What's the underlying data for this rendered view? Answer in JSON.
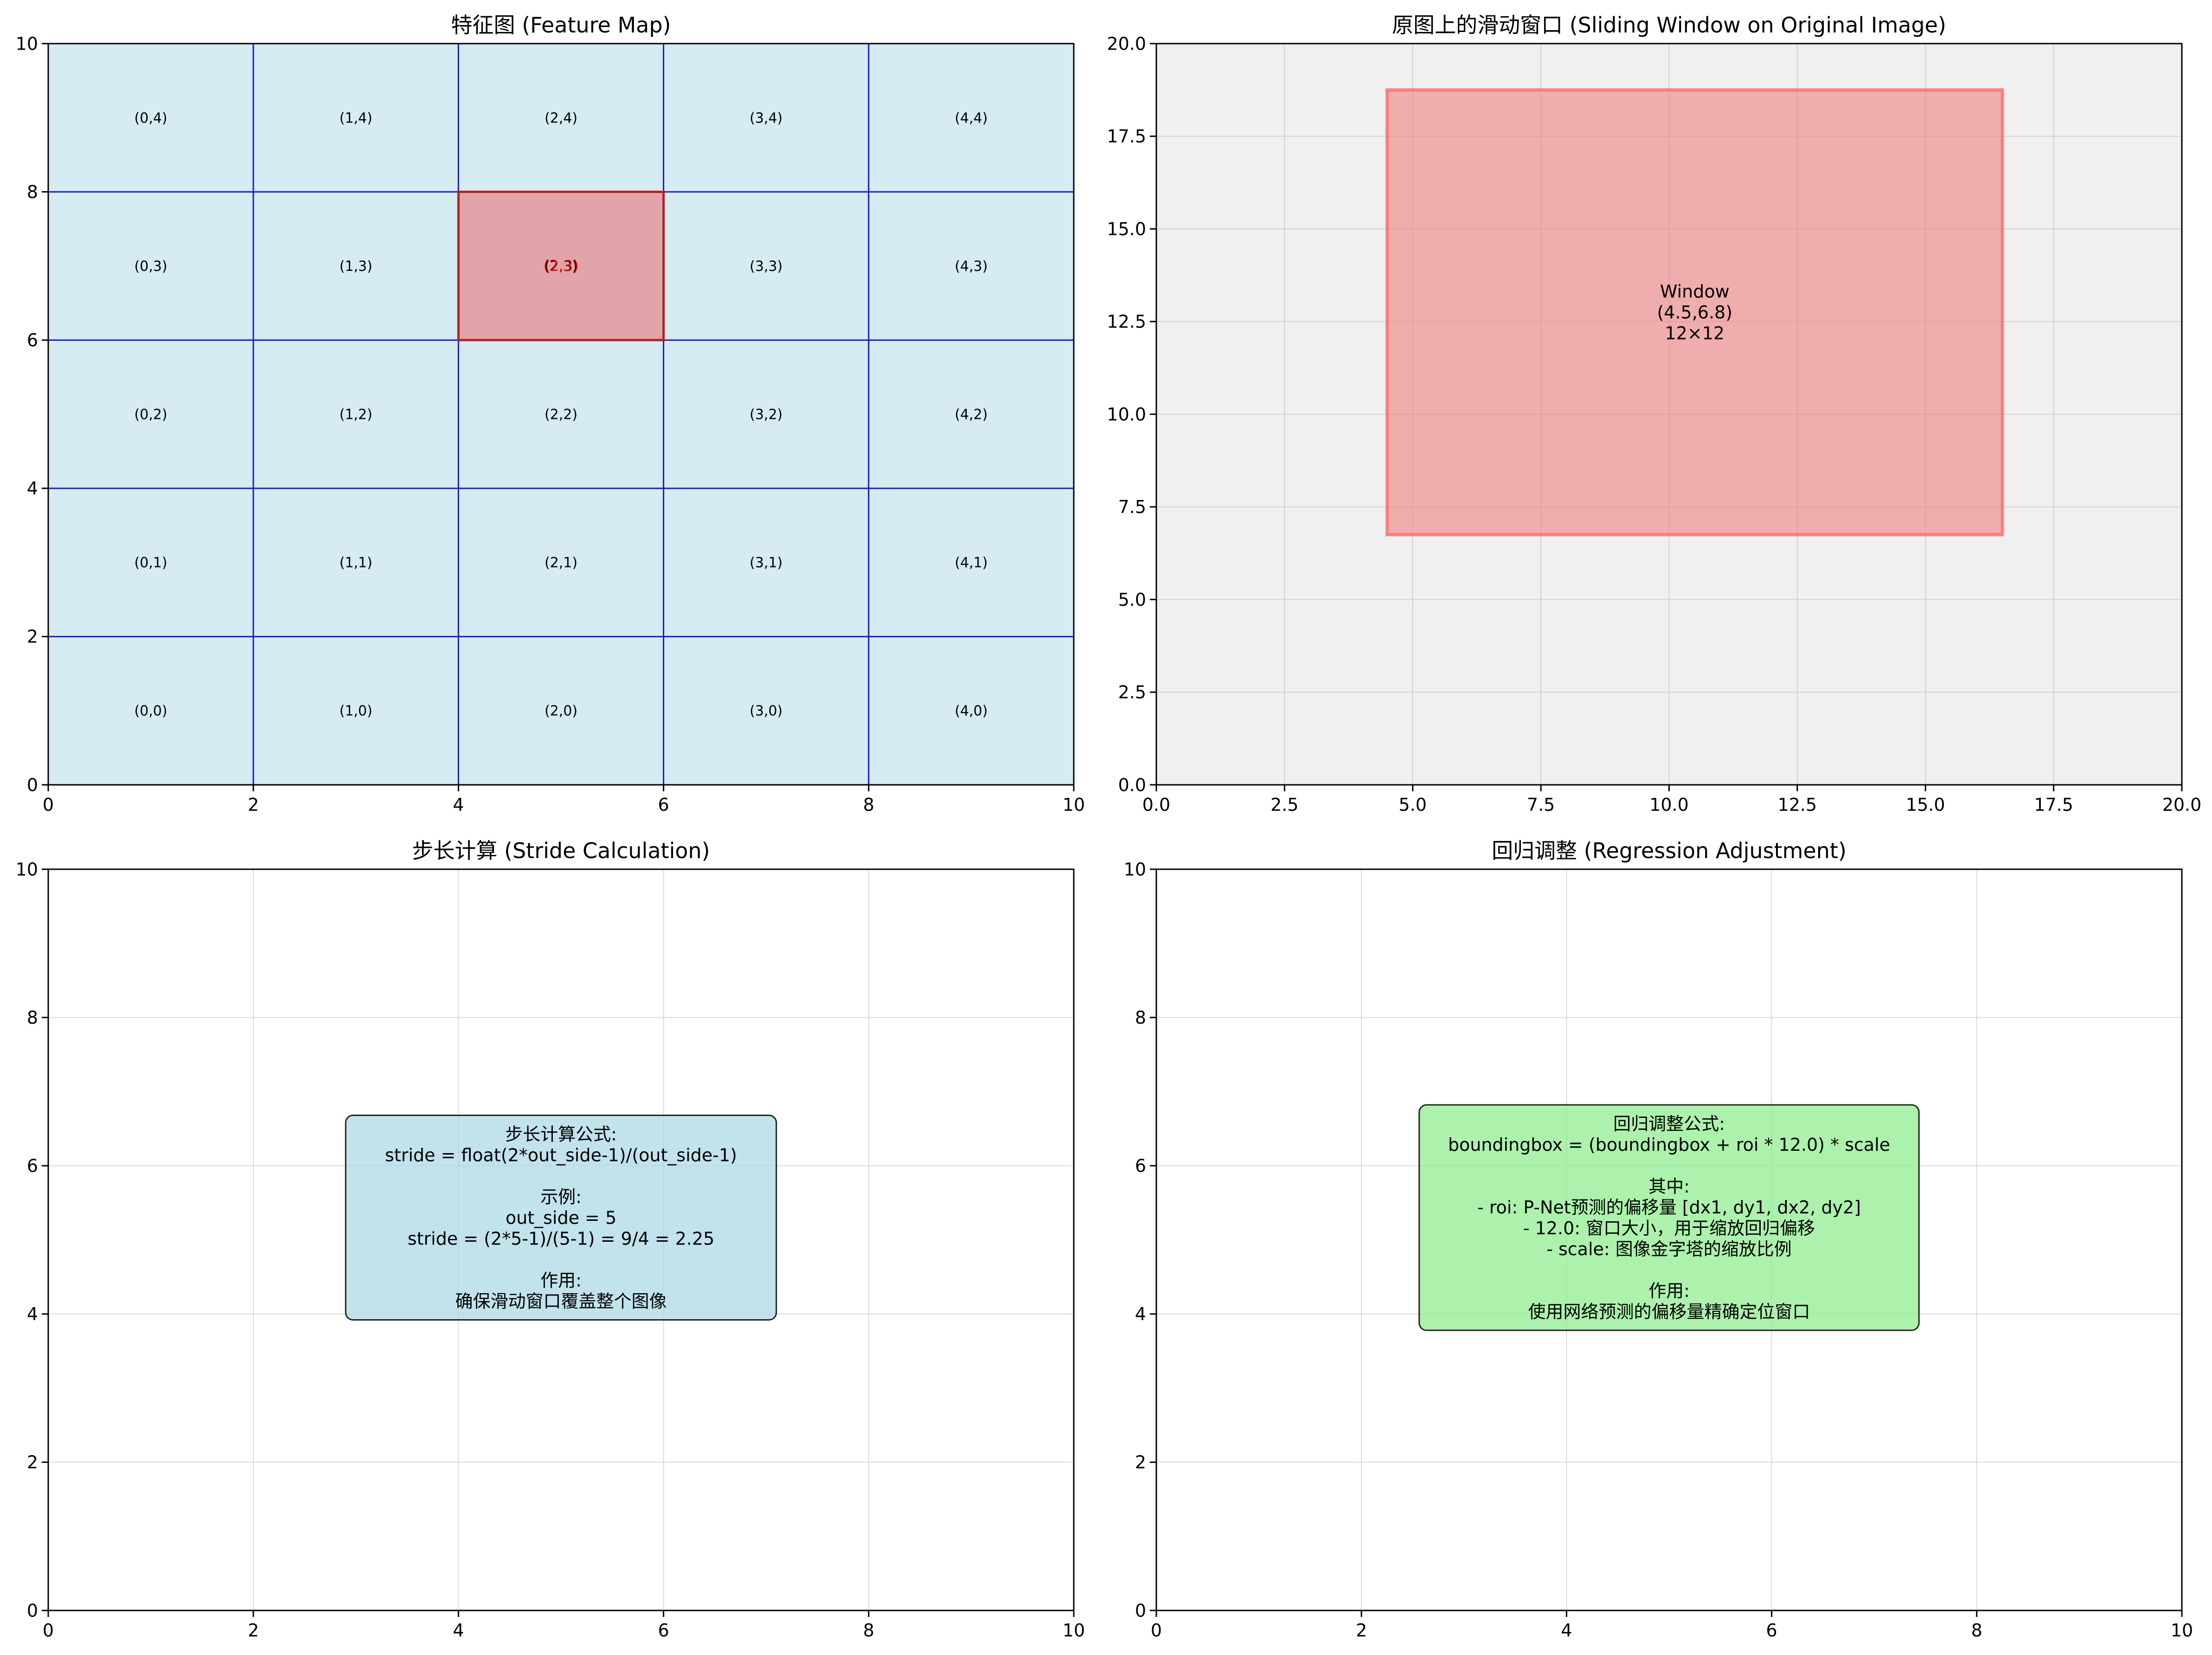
{
  "chart_data": [
    {
      "type": "heatmap",
      "title": "特征图 (Feature Map)",
      "xlim": [
        0,
        10
      ],
      "ylim": [
        0,
        10
      ],
      "xticks": [
        "0",
        "2",
        "4",
        "6",
        "8",
        "10"
      ],
      "yticks": [
        "0",
        "2",
        "4",
        "6",
        "8",
        "10"
      ],
      "grid": false,
      "cell_size": 2,
      "cells": [
        {
          "label": "(0,0)",
          "col": 0,
          "row": 0
        },
        {
          "label": "(1,0)",
          "col": 1,
          "row": 0
        },
        {
          "label": "(2,0)",
          "col": 2,
          "row": 0
        },
        {
          "label": "(3,0)",
          "col": 3,
          "row": 0
        },
        {
          "label": "(4,0)",
          "col": 4,
          "row": 0
        },
        {
          "label": "(0,1)",
          "col": 0,
          "row": 1
        },
        {
          "label": "(1,1)",
          "col": 1,
          "row": 1
        },
        {
          "label": "(2,1)",
          "col": 2,
          "row": 1
        },
        {
          "label": "(3,1)",
          "col": 3,
          "row": 1
        },
        {
          "label": "(4,1)",
          "col": 4,
          "row": 1
        },
        {
          "label": "(0,2)",
          "col": 0,
          "row": 2
        },
        {
          "label": "(1,2)",
          "col": 1,
          "row": 2
        },
        {
          "label": "(2,2)",
          "col": 2,
          "row": 2
        },
        {
          "label": "(3,2)",
          "col": 3,
          "row": 2
        },
        {
          "label": "(4,2)",
          "col": 4,
          "row": 2
        },
        {
          "label": "(0,3)",
          "col": 0,
          "row": 3
        },
        {
          "label": "(1,3)",
          "col": 1,
          "row": 3
        },
        {
          "label": "(2,3)",
          "col": 2,
          "row": 3
        },
        {
          "label": "(3,3)",
          "col": 3,
          "row": 3
        },
        {
          "label": "(4,3)",
          "col": 4,
          "row": 3
        },
        {
          "label": "(0,4)",
          "col": 0,
          "row": 4
        },
        {
          "label": "(1,4)",
          "col": 1,
          "row": 4
        },
        {
          "label": "(2,4)",
          "col": 2,
          "row": 4
        },
        {
          "label": "(3,4)",
          "col": 3,
          "row": 4
        },
        {
          "label": "(4,4)",
          "col": 4,
          "row": 4
        }
      ],
      "highlight": {
        "col": 2,
        "row": 3,
        "label": "(2,3)"
      },
      "colors": {
        "cell_fill": "#add8e6",
        "cell_edge": "#0000cd",
        "highlight_fill": "#ff0000",
        "highlight_edge": "#b22222",
        "highlight_text": "#cc0000"
      }
    },
    {
      "type": "scatter",
      "title": "原图上的滑动窗口 (Sliding Window on Original Image)",
      "xlim": [
        0,
        20
      ],
      "ylim": [
        0,
        20
      ],
      "xticks": [
        "0.0",
        "2.5",
        "5.0",
        "7.5",
        "10.0",
        "12.5",
        "15.0",
        "17.5",
        "20.0"
      ],
      "yticks": [
        "0.0",
        "2.5",
        "5.0",
        "7.5",
        "10.0",
        "12.5",
        "15.0",
        "17.5",
        "20.0"
      ],
      "grid": true,
      "window": {
        "x": 4.5,
        "y": 6.75,
        "width": 12,
        "height": 12
      },
      "window_label": [
        "Window",
        "(4.5,6.8)",
        "12×12"
      ],
      "colors": {
        "background": "#f0f0f0",
        "window_fill": "#f08080",
        "window_edge": "#ff6b6b"
      }
    },
    {
      "type": "table",
      "title": "步长计算 (Stride Calculation)",
      "xlim": [
        0,
        10
      ],
      "ylim": [
        0,
        10
      ],
      "xticks": [
        "0",
        "2",
        "4",
        "6",
        "8",
        "10"
      ],
      "yticks": [
        "0",
        "2",
        "4",
        "6",
        "8",
        "10"
      ],
      "grid": true,
      "box": {
        "cx": 5,
        "cy": 5.3
      },
      "text_lines": [
        "步长计算公式:",
        "stride = float(2*out_side-1)/(out_side-1)",
        "",
        "示例:",
        "out_side = 5",
        "stride = (2*5-1)/(5-1) = 9/4 = 2.25",
        "",
        "作用:",
        "确保滑动窗口覆盖整个图像"
      ],
      "colors": {
        "box_fill": "#add8e6"
      }
    },
    {
      "type": "table",
      "title": "回归调整 (Regression Adjustment)",
      "xlim": [
        0,
        10
      ],
      "ylim": [
        0,
        10
      ],
      "xticks": [
        "0",
        "2",
        "4",
        "6",
        "8",
        "10"
      ],
      "yticks": [
        "0",
        "2",
        "4",
        "6",
        "8",
        "10"
      ],
      "grid": true,
      "box": {
        "cx": 5,
        "cy": 5.3
      },
      "text_lines": [
        "回归调整公式:",
        "boundingbox = (boundingbox + roi * 12.0) * scale",
        "",
        "其中:",
        "- roi: P-Net预测的偏移量 [dx1, dy1, dx2, dy2]",
        "- 12.0: 窗口大小，用于缩放回归偏移",
        "- scale: 图像金字塔的缩放比例",
        "",
        "作用:",
        "使用网络预测的偏移量精确定位窗口"
      ],
      "colors": {
        "box_fill": "#90ee90"
      }
    }
  ]
}
